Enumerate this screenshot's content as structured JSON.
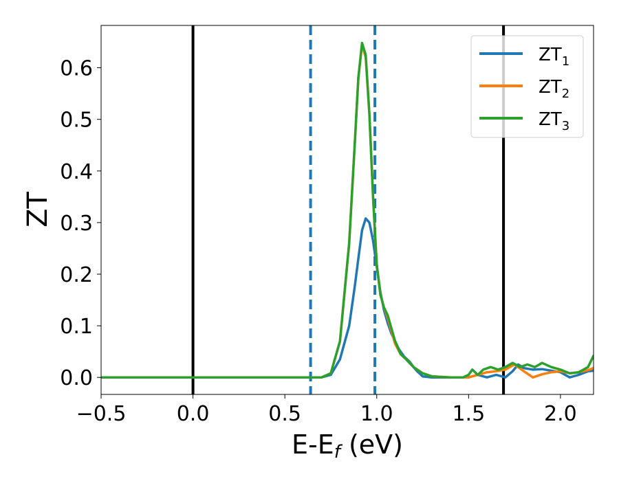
{
  "chart_data": {
    "type": "line",
    "title": "",
    "xlabel": "E-E",
    "xlabel_sub": "f",
    "xlabel_unit": " (eV)",
    "ylabel": "ZT",
    "xlim": [
      -0.5,
      2.18
    ],
    "ylim": [
      -0.033,
      0.682
    ],
    "xticks": [
      -0.5,
      0.0,
      0.5,
      1.0,
      1.5,
      2.0
    ],
    "xtick_labels": [
      "−0.5",
      "0.0",
      "0.5",
      "1.0",
      "1.5",
      "2.0"
    ],
    "yticks": [
      0.0,
      0.1,
      0.2,
      0.3,
      0.4,
      0.5,
      0.6
    ],
    "ytick_labels": [
      "0.0",
      "0.1",
      "0.2",
      "0.3",
      "0.4",
      "0.5",
      "0.6"
    ],
    "grid": false,
    "legend_position": "top-right",
    "vlines": [
      {
        "x": 0.0,
        "color": "#000000",
        "style": "solid"
      },
      {
        "x": 1.69,
        "color": "#000000",
        "style": "solid"
      },
      {
        "x": 0.64,
        "color": "#1f77b4",
        "style": "dashed"
      },
      {
        "x": 0.99,
        "color": "#1f77b4",
        "style": "dashed"
      }
    ],
    "series": [
      {
        "name": "ZT",
        "name_sub": "1",
        "color": "#1f77b4",
        "x": [
          -0.5,
          0.6,
          0.7,
          0.75,
          0.8,
          0.85,
          0.88,
          0.9,
          0.92,
          0.94,
          0.96,
          0.98,
          1.0,
          1.02,
          1.04,
          1.06,
          1.08,
          1.1,
          1.12,
          1.15,
          1.18,
          1.2,
          1.22,
          1.25,
          1.3,
          1.4,
          1.5,
          1.55,
          1.6,
          1.65,
          1.7,
          1.74,
          1.77,
          1.8,
          1.85,
          1.9,
          1.95,
          2.0,
          2.05,
          2.1,
          2.15,
          2.18
        ],
        "y": [
          0.0,
          0.0,
          0.0,
          0.005,
          0.035,
          0.1,
          0.175,
          0.23,
          0.285,
          0.308,
          0.3,
          0.265,
          0.215,
          0.165,
          0.13,
          0.105,
          0.085,
          0.07,
          0.055,
          0.04,
          0.03,
          0.02,
          0.012,
          0.002,
          0.0,
          0.0,
          0.0,
          0.005,
          0.0,
          0.005,
          0.0,
          0.012,
          0.025,
          0.018,
          0.015,
          0.016,
          0.013,
          0.01,
          0.0,
          0.005,
          0.012,
          0.013
        ]
      },
      {
        "name": "ZT",
        "name_sub": "2",
        "color": "#ff7f0e",
        "x": [
          -0.5,
          0.6,
          0.7,
          0.75,
          0.8,
          0.85,
          0.88,
          0.9,
          0.92,
          0.94,
          0.96,
          0.98,
          1.0,
          1.02,
          1.04,
          1.06,
          1.08,
          1.1,
          1.13,
          1.16,
          1.2,
          1.25,
          1.3,
          1.4,
          1.5,
          1.55,
          1.6,
          1.65,
          1.7,
          1.75,
          1.8,
          1.85,
          1.9,
          1.95,
          2.0,
          2.05,
          2.1,
          2.15,
          2.18
        ],
        "y": [
          0.0,
          0.0,
          0.0,
          0.008,
          0.07,
          0.26,
          0.45,
          0.58,
          0.645,
          0.62,
          0.51,
          0.35,
          0.22,
          0.16,
          0.135,
          0.115,
          0.09,
          0.065,
          0.045,
          0.035,
          0.02,
          0.008,
          0.002,
          0.0,
          0.0,
          0.005,
          0.01,
          0.012,
          0.015,
          0.025,
          0.012,
          0.0,
          0.006,
          0.01,
          0.012,
          0.008,
          0.01,
          0.014,
          0.018
        ]
      },
      {
        "name": "ZT",
        "name_sub": "3",
        "color": "#2ca02c",
        "x": [
          -0.5,
          0.6,
          0.7,
          0.75,
          0.8,
          0.85,
          0.88,
          0.9,
          0.92,
          0.94,
          0.96,
          0.98,
          1.0,
          1.02,
          1.04,
          1.06,
          1.08,
          1.1,
          1.13,
          1.16,
          1.2,
          1.25,
          1.3,
          1.4,
          1.47,
          1.5,
          1.52,
          1.55,
          1.58,
          1.62,
          1.66,
          1.7,
          1.74,
          1.78,
          1.82,
          1.86,
          1.9,
          1.95,
          2.0,
          2.05,
          2.1,
          2.15,
          2.18
        ],
        "y": [
          0.0,
          0.0,
          0.0,
          0.008,
          0.07,
          0.26,
          0.45,
          0.58,
          0.648,
          0.625,
          0.51,
          0.35,
          0.22,
          0.16,
          0.135,
          0.12,
          0.095,
          0.07,
          0.045,
          0.035,
          0.02,
          0.008,
          0.002,
          0.0,
          0.0,
          0.005,
          0.015,
          0.005,
          0.015,
          0.02,
          0.015,
          0.02,
          0.028,
          0.02,
          0.025,
          0.02,
          0.028,
          0.02,
          0.015,
          0.008,
          0.01,
          0.02,
          0.042
        ]
      }
    ]
  }
}
